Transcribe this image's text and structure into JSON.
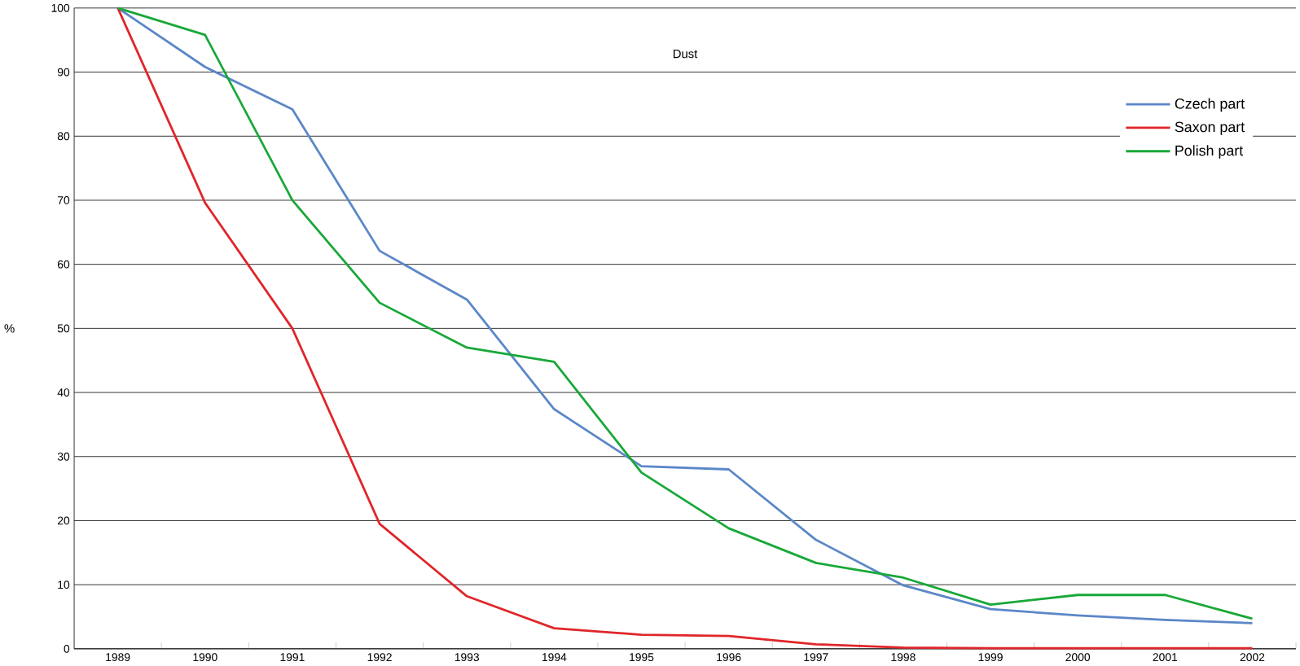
{
  "chart_data": {
    "type": "line",
    "title": "Dust",
    "ylabel": "%",
    "categories": [
      "1989",
      "1990",
      "1991",
      "1992",
      "1993",
      "1994",
      "1995",
      "1996",
      "1997",
      "1998",
      "1999",
      "2000",
      "2001",
      "2002"
    ],
    "series": [
      {
        "name": "Czech part",
        "color": "#5b87c8",
        "values": [
          100,
          90.8,
          84.2,
          62.1,
          54.5,
          37.4,
          28.5,
          28,
          17,
          9.9,
          6.2,
          5.2,
          4.5,
          4
        ]
      },
      {
        "name": "Saxon part",
        "color": "#e0262a",
        "values": [
          100,
          69.6,
          50,
          19.5,
          8.2,
          3.2,
          2.2,
          2,
          0.7,
          0.2,
          0.1,
          0.1,
          0.1,
          0.1
        ]
      },
      {
        "name": "Polish part",
        "color": "#18a838",
        "values": [
          100,
          95.8,
          70,
          54,
          47,
          44.8,
          27.5,
          18.8,
          13.4,
          11.1,
          6.9,
          8.4,
          8.4,
          4.7
        ]
      }
    ],
    "ylim": [
      0,
      100
    ],
    "yticks": [
      0,
      10,
      20,
      30,
      40,
      50,
      60,
      70,
      80,
      90,
      100
    ],
    "grid": "y",
    "legend": "top right",
    "marker": "none",
    "line_style": "solid"
  }
}
